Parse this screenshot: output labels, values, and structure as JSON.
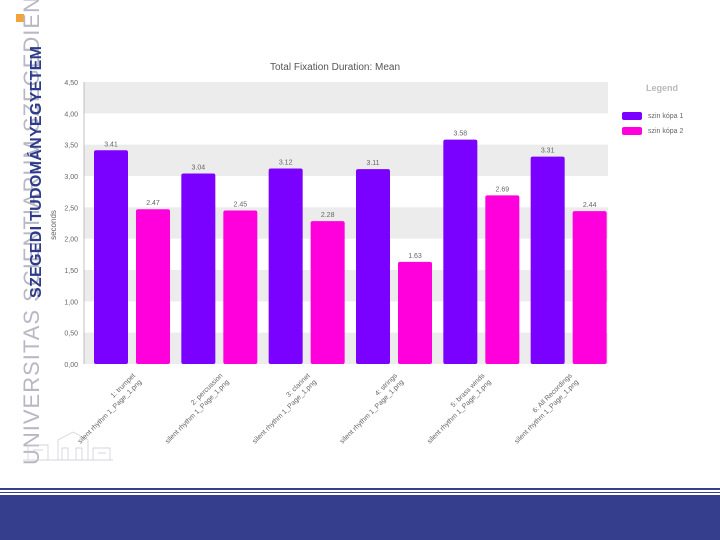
{
  "branding": {
    "university_latin": "UNIVERSITAS SCIENTIARUM SZEGEDIENSIS",
    "university_hu": "SZEGEDI TUDOMÁNYEGYETEM",
    "accent_color": "#f2a33a",
    "band_color": "#353e8c"
  },
  "chart_data": {
    "type": "bar",
    "title": "Total Fixation Duration: Mean",
    "xlabel": "",
    "ylabel": "seconds",
    "ylim": [
      0,
      4.5
    ],
    "yticks": [
      "0,00",
      "0,50",
      "1,00",
      "1,50",
      "2,00",
      "2,50",
      "3,00",
      "3,50",
      "4,00",
      "4,50"
    ],
    "grid": "alternating horizontal bands",
    "legend_title": "Legend",
    "legend_position": "right",
    "categories": [
      [
        "1: trumpet",
        "silent rhythm 1_Page_1.png"
      ],
      [
        "2: percussion",
        "silent rhythm 1_Page_1.png"
      ],
      [
        "3: clarinet",
        "silent rhythm 1_Page_1.png"
      ],
      [
        "4: strings",
        "silent rhythm 1_Page_1.png"
      ],
      [
        "5: brass winds",
        "silent rhythm 1_Page_1.png"
      ],
      [
        "6: All Recordings",
        "silent rhythm 1_Page_1.png"
      ]
    ],
    "series": [
      {
        "name": "szin kópa 1",
        "color": "#7a00ff",
        "values": [
          3.41,
          3.04,
          3.12,
          3.11,
          3.58,
          3.31
        ],
        "labels": [
          "3.41",
          "3.04",
          "3.12",
          "3.11",
          "3.58",
          "3.31"
        ]
      },
      {
        "name": "szin kópa 2",
        "color": "#ff00dd",
        "values": [
          2.47,
          2.45,
          2.28,
          1.63,
          2.69,
          2.44
        ],
        "labels": [
          "2.47",
          "2.45",
          "2.28",
          "1.63",
          "2.69",
          "2.44"
        ]
      }
    ]
  }
}
